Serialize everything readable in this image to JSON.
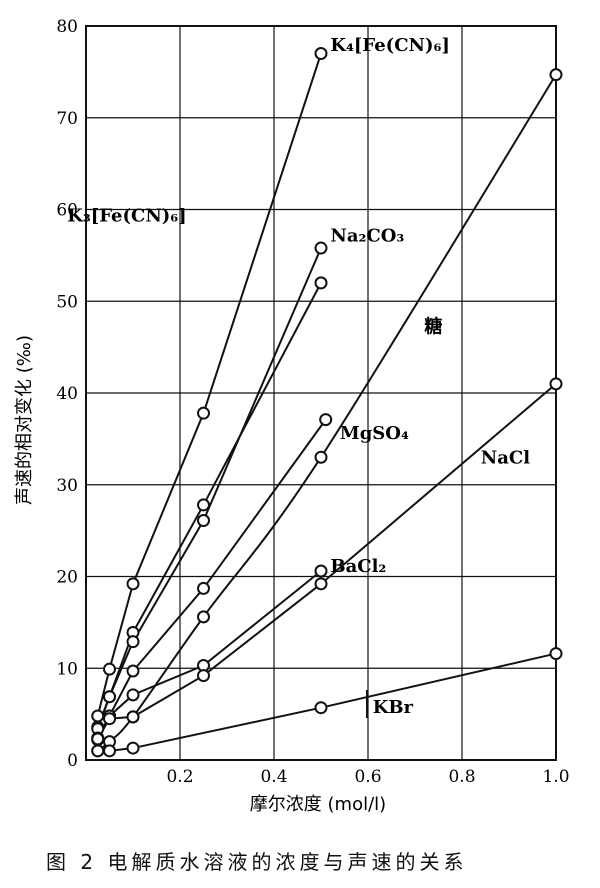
{
  "caption": "图 2   电解质水溶液的浓度与声速的关系",
  "chart_data": {
    "type": "line",
    "title": "",
    "xlabel": "摩尔浓度 (mol/l)",
    "ylabel": "声速的相对变化 (‰)",
    "xlim": [
      0,
      1.0
    ],
    "ylim": [
      0,
      80
    ],
    "xticks": [
      0.2,
      0.4,
      0.6,
      0.8,
      1.0
    ],
    "xtick_labels": [
      "0.2",
      "0.4",
      "0.6",
      "0.8",
      "1.0"
    ],
    "yticks": [
      0,
      10,
      20,
      30,
      40,
      50,
      60,
      70,
      80
    ],
    "ytick_labels": [
      "0",
      "10",
      "20",
      "30",
      "40",
      "50",
      "60",
      "70",
      "80"
    ],
    "grid": true,
    "series": [
      {
        "name": "K₄[Fe(CN)₆]",
        "x": [
          0.025,
          0.05,
          0.1,
          0.25,
          0.5
        ],
        "y": [
          4.8,
          9.9,
          19.2,
          37.8,
          77.0
        ],
        "curved": false
      },
      {
        "name": "K₃[Fe(CN)₆]",
        "x": [
          0.025,
          0.05,
          0.1,
          0.25,
          0.5
        ],
        "y": [
          3.6,
          6.9,
          13.9,
          27.8,
          52.0
        ],
        "curved": false
      },
      {
        "name": "Na₂CO₃",
        "x": [
          0.025,
          0.05,
          0.1,
          0.25,
          0.5
        ],
        "y": [
          3.4,
          6.9,
          12.9,
          26.1,
          55.8
        ],
        "curved": false
      },
      {
        "name": "糖",
        "x": [
          0.025,
          0.05,
          0.1,
          0.25,
          0.5,
          1.0
        ],
        "y": [
          1.0,
          2.0,
          4.7,
          15.6,
          33.0,
          74.7
        ],
        "curved": true
      },
      {
        "name": "MgSO₄",
        "x": [
          0.025,
          0.05,
          0.1,
          0.25,
          0.51
        ],
        "y": [
          2.4,
          4.8,
          9.7,
          18.7,
          37.1
        ],
        "curved": false
      },
      {
        "name": "BaCl₂",
        "x": [
          0.025,
          0.05,
          0.1,
          0.25,
          0.5
        ],
        "y": [
          2.2,
          4.8,
          7.1,
          10.3,
          20.6
        ],
        "curved": false
      },
      {
        "name": "NaCl",
        "x": [
          0.025,
          0.05,
          0.1,
          0.25,
          0.5,
          1.0
        ],
        "y": [
          2.3,
          4.5,
          4.7,
          9.2,
          19.2,
          41.0
        ],
        "curved": false
      },
      {
        "name": "KBr",
        "x": [
          0.025,
          0.05,
          0.1,
          0.5,
          1.0
        ],
        "y": [
          1.0,
          1.0,
          1.3,
          5.7,
          11.6
        ],
        "curved": false
      }
    ],
    "annotations": [
      {
        "text": "K₄[Fe(CN)₆]",
        "x": 0.52,
        "y": 77.3
      },
      {
        "text": "K₃[Fe(CN)₆]",
        "x": -0.04,
        "y": 58.7
      },
      {
        "text": "Na₂CO₃",
        "x": 0.52,
        "y": 56.5
      },
      {
        "text": "糖",
        "x": 0.72,
        "y": 46.6
      },
      {
        "text": "MgSO₄",
        "x": 0.54,
        "y": 35.0
      },
      {
        "text": "NaCl",
        "x": 0.84,
        "y": 32.3
      },
      {
        "text": "BaCl₂",
        "x": 0.52,
        "y": 20.5
      },
      {
        "text": "KBr",
        "x": 0.61,
        "y": 5.1
      }
    ]
  }
}
